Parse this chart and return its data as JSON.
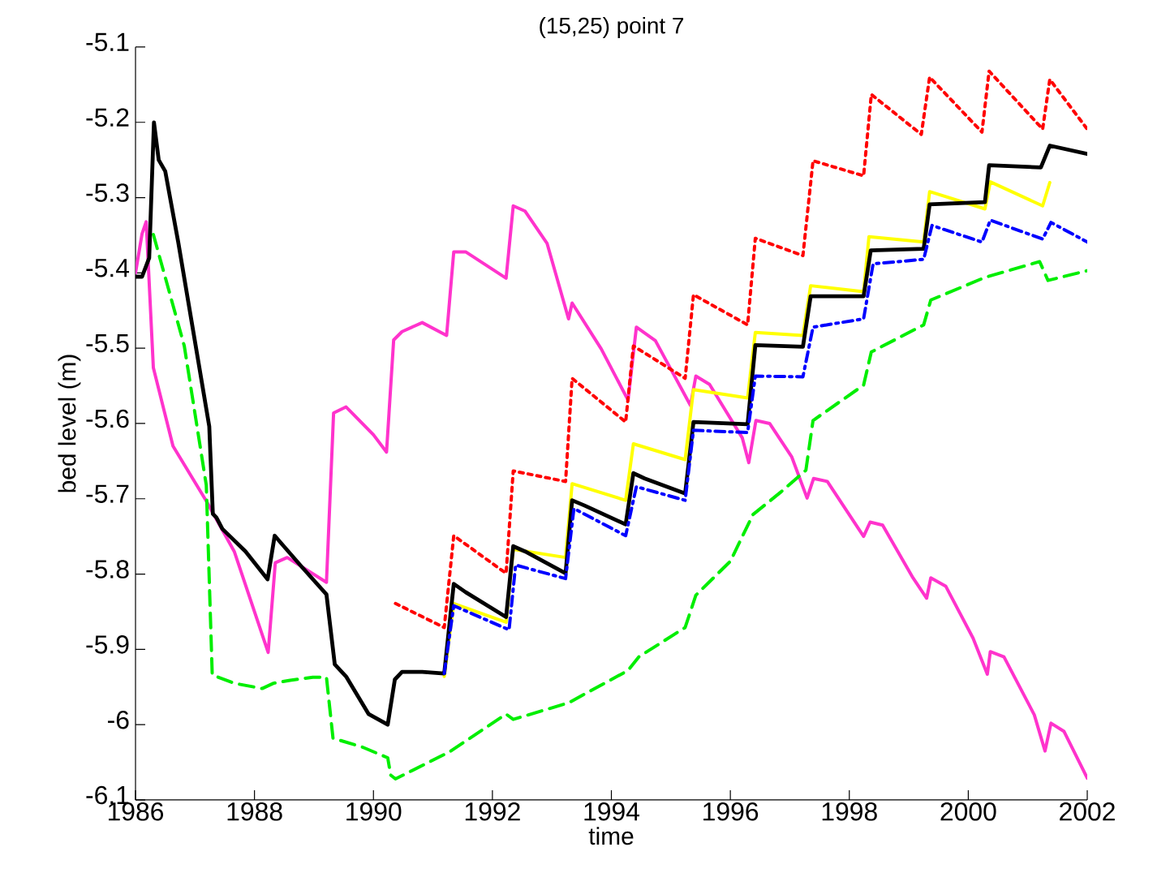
{
  "chart_data": {
    "type": "line",
    "title": "(15,25) point 7",
    "xlabel": "time",
    "ylabel": "bed level  (m)",
    "xlim": [
      1986,
      2002
    ],
    "ylim": [
      -6.1,
      -5.1
    ],
    "xticks": [
      1986,
      1988,
      1990,
      1992,
      1994,
      1996,
      1998,
      2000,
      2002
    ],
    "yticks": [
      -6.1,
      -6,
      -5.9,
      -5.8,
      -5.7,
      -5.6,
      -5.5,
      -5.4,
      -5.3,
      -5.2,
      -5.1
    ],
    "grid": false,
    "marker": "none",
    "series": [
      {
        "color": "#ff33cc",
        "line_style": "solid",
        "x": [
          1986.0,
          1986.11,
          1986.18,
          1986.3,
          1986.63,
          1987.19,
          1987.66,
          1988.23,
          1988.35,
          1988.55,
          1989.21,
          1989.33,
          1989.54,
          1990.0,
          1990.22,
          1990.34,
          1990.48,
          1990.82,
          1991.23,
          1991.35,
          1991.55,
          1992.23,
          1992.35,
          1992.55,
          1992.92,
          1993.28,
          1993.34,
          1993.83,
          1994.28,
          1994.42,
          1994.74,
          1995.33,
          1995.42,
          1995.65,
          1996.2,
          1996.31,
          1996.43,
          1996.66,
          1997.03,
          1997.29,
          1997.4,
          1997.63,
          1998.24,
          1998.35,
          1998.56,
          1999.07,
          1999.3,
          1999.37,
          1999.62,
          2000.08,
          2000.32,
          2000.37,
          2000.6,
          2001.11,
          2001.29,
          2001.39,
          2001.61,
          2002.0
        ],
        "values": [
          -5.4,
          -5.348,
          -5.332,
          -5.526,
          -5.63,
          -5.703,
          -5.77,
          -5.904,
          -5.785,
          -5.778,
          -5.811,
          -5.586,
          -5.578,
          -5.615,
          -5.638,
          -5.489,
          -5.478,
          -5.466,
          -5.483,
          -5.372,
          -5.372,
          -5.407,
          -5.311,
          -5.318,
          -5.361,
          -5.461,
          -5.44,
          -5.501,
          -5.569,
          -5.472,
          -5.49,
          -5.576,
          -5.537,
          -5.548,
          -5.619,
          -5.652,
          -5.596,
          -5.6,
          -5.644,
          -5.699,
          -5.673,
          -5.677,
          -5.75,
          -5.731,
          -5.735,
          -5.805,
          -5.832,
          -5.805,
          -5.816,
          -5.885,
          -5.933,
          -5.903,
          -5.91,
          -5.987,
          -6.035,
          -5.998,
          -6.009,
          -6.071
        ]
      },
      {
        "color": "#00ee00",
        "line_style": "dashed",
        "x": [
          1986.3,
          1986.82,
          1987.19,
          1987.29,
          1987.66,
          1988.13,
          1988.32,
          1988.6,
          1988.98,
          1989.21,
          1989.32,
          1989.82,
          1990.24,
          1990.29,
          1990.37,
          1991.28,
          1992.23,
          1992.35,
          1993.28,
          1994.28,
          1994.46,
          1995.24,
          1995.42,
          1996.0,
          1996.38,
          1996.85,
          1997.27,
          1997.39,
          1998.24,
          1998.37,
          1999.25,
          1999.37,
          2000.28,
          2001.2,
          2001.34,
          2002.0
        ],
        "values": [
          -5.349,
          -5.497,
          -5.682,
          -5.934,
          -5.945,
          -5.952,
          -5.945,
          -5.941,
          -5.937,
          -5.937,
          -6.018,
          -6.03,
          -6.044,
          -6.067,
          -6.072,
          -6.036,
          -5.986,
          -5.993,
          -5.971,
          -5.928,
          -5.91,
          -5.871,
          -5.828,
          -5.783,
          -5.721,
          -5.691,
          -5.662,
          -5.596,
          -5.549,
          -5.505,
          -5.469,
          -5.436,
          -5.406,
          -5.385,
          -5.41,
          -5.397
        ]
      },
      {
        "color": "#ff0000",
        "line_style": "dotted",
        "x": [
          1990.37,
          1991.19,
          1991.35,
          1992.23,
          1992.35,
          1993.23,
          1993.34,
          1994.24,
          1994.37,
          1995.24,
          1995.38,
          1996.29,
          1996.42,
          1997.22,
          1997.39,
          1998.24,
          1998.37,
          1999.21,
          1999.35,
          2000.23,
          2000.35,
          2001.25,
          2001.37,
          2002.0
        ],
        "values": [
          -5.839,
          -5.871,
          -5.749,
          -5.799,
          -5.663,
          -5.677,
          -5.54,
          -5.598,
          -5.497,
          -5.54,
          -5.429,
          -5.469,
          -5.354,
          -5.377,
          -5.251,
          -5.271,
          -5.163,
          -5.216,
          -5.14,
          -5.213,
          -5.132,
          -5.209,
          -5.143,
          -5.209
        ]
      },
      {
        "color": "#ffff00",
        "line_style": "solid",
        "x": [
          1991.19,
          1991.35,
          1992.23,
          1992.35,
          1993.23,
          1993.34,
          1994.24,
          1994.37,
          1995.24,
          1995.38,
          1996.29,
          1996.42,
          1997.22,
          1997.35,
          1998.24,
          1998.33,
          1999.25,
          1999.35,
          2000.28,
          2000.37,
          2001.25,
          2001.37
        ],
        "values": [
          -5.936,
          -5.839,
          -5.864,
          -5.767,
          -5.778,
          -5.68,
          -5.702,
          -5.627,
          -5.648,
          -5.555,
          -5.566,
          -5.479,
          -5.483,
          -5.417,
          -5.425,
          -5.352,
          -5.359,
          -5.292,
          -5.315,
          -5.279,
          -5.311,
          -5.28
        ]
      },
      {
        "color": "#0000ff",
        "line_style": "dashdot",
        "x": [
          1991.19,
          1991.35,
          1992.28,
          1992.39,
          1993.23,
          1993.37,
          1994.24,
          1994.42,
          1995.24,
          1995.38,
          1996.29,
          1996.42,
          1997.22,
          1997.39,
          1998.24,
          1998.4,
          1999.25,
          1999.39,
          2000.23,
          2000.37,
          2001.25,
          2001.39,
          2002.0
        ],
        "values": [
          -5.932,
          -5.842,
          -5.874,
          -5.788,
          -5.806,
          -5.713,
          -5.749,
          -5.684,
          -5.702,
          -5.609,
          -5.612,
          -5.537,
          -5.538,
          -5.472,
          -5.461,
          -5.388,
          -5.382,
          -5.337,
          -5.359,
          -5.33,
          -5.355,
          -5.333,
          -5.359
        ]
      },
      {
        "color": "#000000",
        "line_style": "solid",
        "x": [
          1986.0,
          1986.11,
          1986.23,
          1986.31,
          1986.39,
          1986.5,
          1986.72,
          1987.24,
          1987.3,
          1987.36,
          1987.46,
          1987.85,
          1988.22,
          1988.34,
          1988.46,
          1988.79,
          1989.21,
          1989.35,
          1989.54,
          1989.92,
          1990.24,
          1990.36,
          1990.48,
          1990.82,
          1991.19,
          1991.35,
          1991.55,
          1992.23,
          1992.35,
          1992.55,
          1993.23,
          1993.34,
          1993.55,
          1994.24,
          1994.37,
          1994.56,
          1995.24,
          1995.38,
          1996.29,
          1996.42,
          1997.22,
          1997.35,
          1998.24,
          1998.36,
          1999.25,
          1999.35,
          2000.28,
          2000.35,
          2001.22,
          2001.37,
          2002.0
        ],
        "values": [
          -5.405,
          -5.405,
          -5.38,
          -5.2,
          -5.25,
          -5.265,
          -5.36,
          -5.604,
          -5.72,
          -5.725,
          -5.74,
          -5.77,
          -5.807,
          -5.749,
          -5.76,
          -5.79,
          -5.827,
          -5.92,
          -5.936,
          -5.986,
          -6.0,
          -5.94,
          -5.93,
          -5.93,
          -5.932,
          -5.813,
          -5.824,
          -5.857,
          -5.763,
          -5.77,
          -5.799,
          -5.702,
          -5.709,
          -5.734,
          -5.666,
          -5.673,
          -5.693,
          -5.598,
          -5.601,
          -5.496,
          -5.498,
          -5.431,
          -5.431,
          -5.37,
          -5.368,
          -5.309,
          -5.306,
          -5.257,
          -5.26,
          -5.231,
          -5.242
        ]
      }
    ]
  }
}
